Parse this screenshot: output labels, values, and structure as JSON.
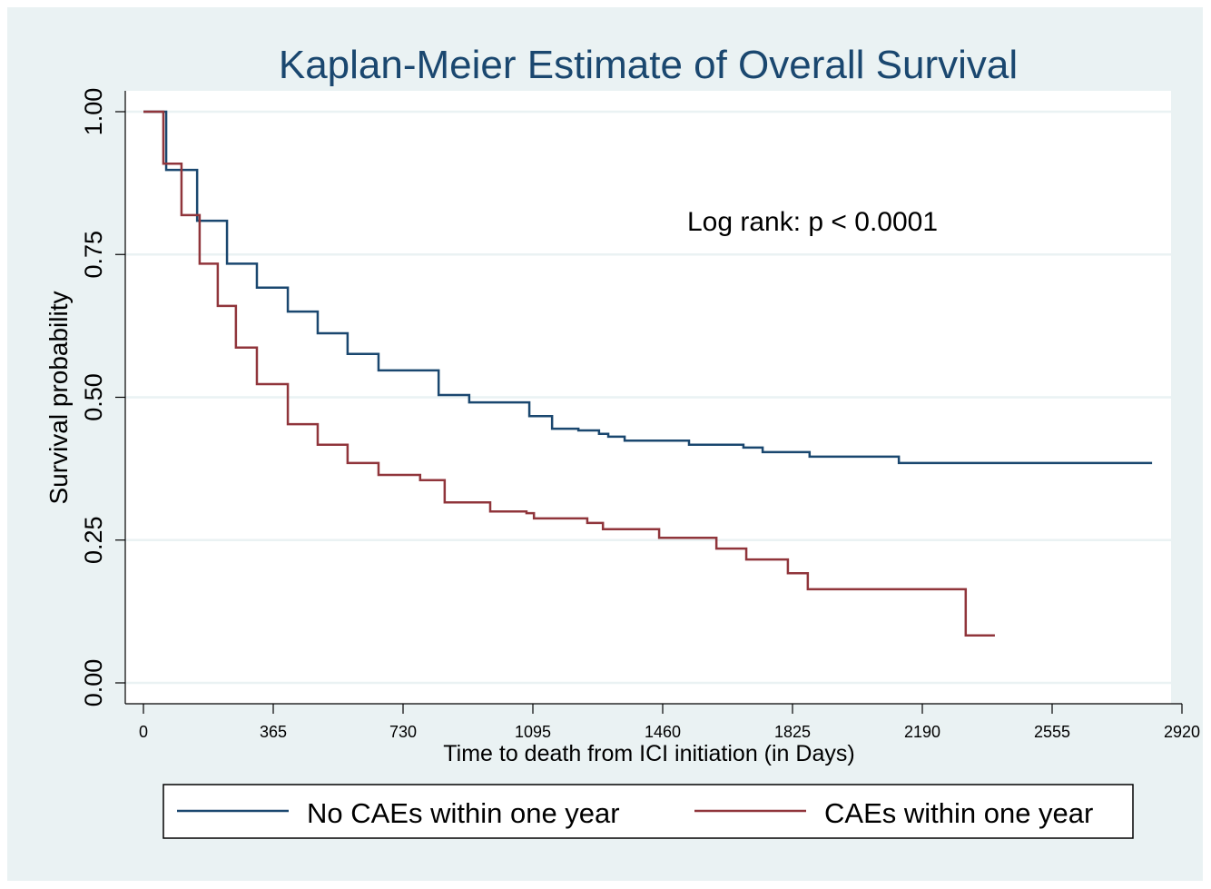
{
  "chart_data": {
    "type": "line",
    "title": "Kaplan-Meier Estimate of Overall Survival",
    "xlabel": "Time to death from ICI initiation (in Days)",
    "ylabel": "Survival probability",
    "xlim": [
      0,
      2920
    ],
    "ylim": [
      0,
      1
    ],
    "xticks": [
      "0",
      "365",
      "730",
      "1095",
      "1460",
      "1825",
      "2190",
      "2555",
      "2920"
    ],
    "yticks": [
      "0.00",
      "0.25",
      "0.50",
      "0.75",
      "1.00"
    ],
    "grid": true,
    "annotation": "Log rank: p < 0.0001",
    "legend_position": "bottom",
    "series": [
      {
        "name": "No CAEs within one year",
        "color": "#1a476f",
        "x": [
          0,
          64,
          151,
          235,
          319,
          406,
          490,
          574,
          661,
          830,
          916,
          1085,
          1149,
          1223,
          1281,
          1307,
          1353,
          1534,
          1687,
          1741,
          1873,
          2124,
          2836
        ],
        "y": [
          1.0,
          0.898,
          0.809,
          0.734,
          0.692,
          0.65,
          0.612,
          0.576,
          0.547,
          0.504,
          0.491,
          0.467,
          0.445,
          0.442,
          0.436,
          0.431,
          0.424,
          0.417,
          0.412,
          0.404,
          0.396,
          0.385,
          0.385
        ]
      },
      {
        "name": "CAEs within one year",
        "color": "#90353b",
        "x": [
          0,
          56,
          107,
          158,
          209,
          260,
          319,
          406,
          490,
          574,
          661,
          778,
          847,
          975,
          1077,
          1098,
          1248,
          1292,
          1450,
          1611,
          1695,
          1812,
          1868,
          2312,
          2394
        ],
        "y": [
          1.0,
          0.909,
          0.819,
          0.734,
          0.66,
          0.587,
          0.523,
          0.453,
          0.417,
          0.385,
          0.364,
          0.355,
          0.316,
          0.3,
          0.297,
          0.288,
          0.28,
          0.269,
          0.254,
          0.235,
          0.216,
          0.192,
          0.164,
          0.083,
          0.083
        ]
      }
    ]
  }
}
